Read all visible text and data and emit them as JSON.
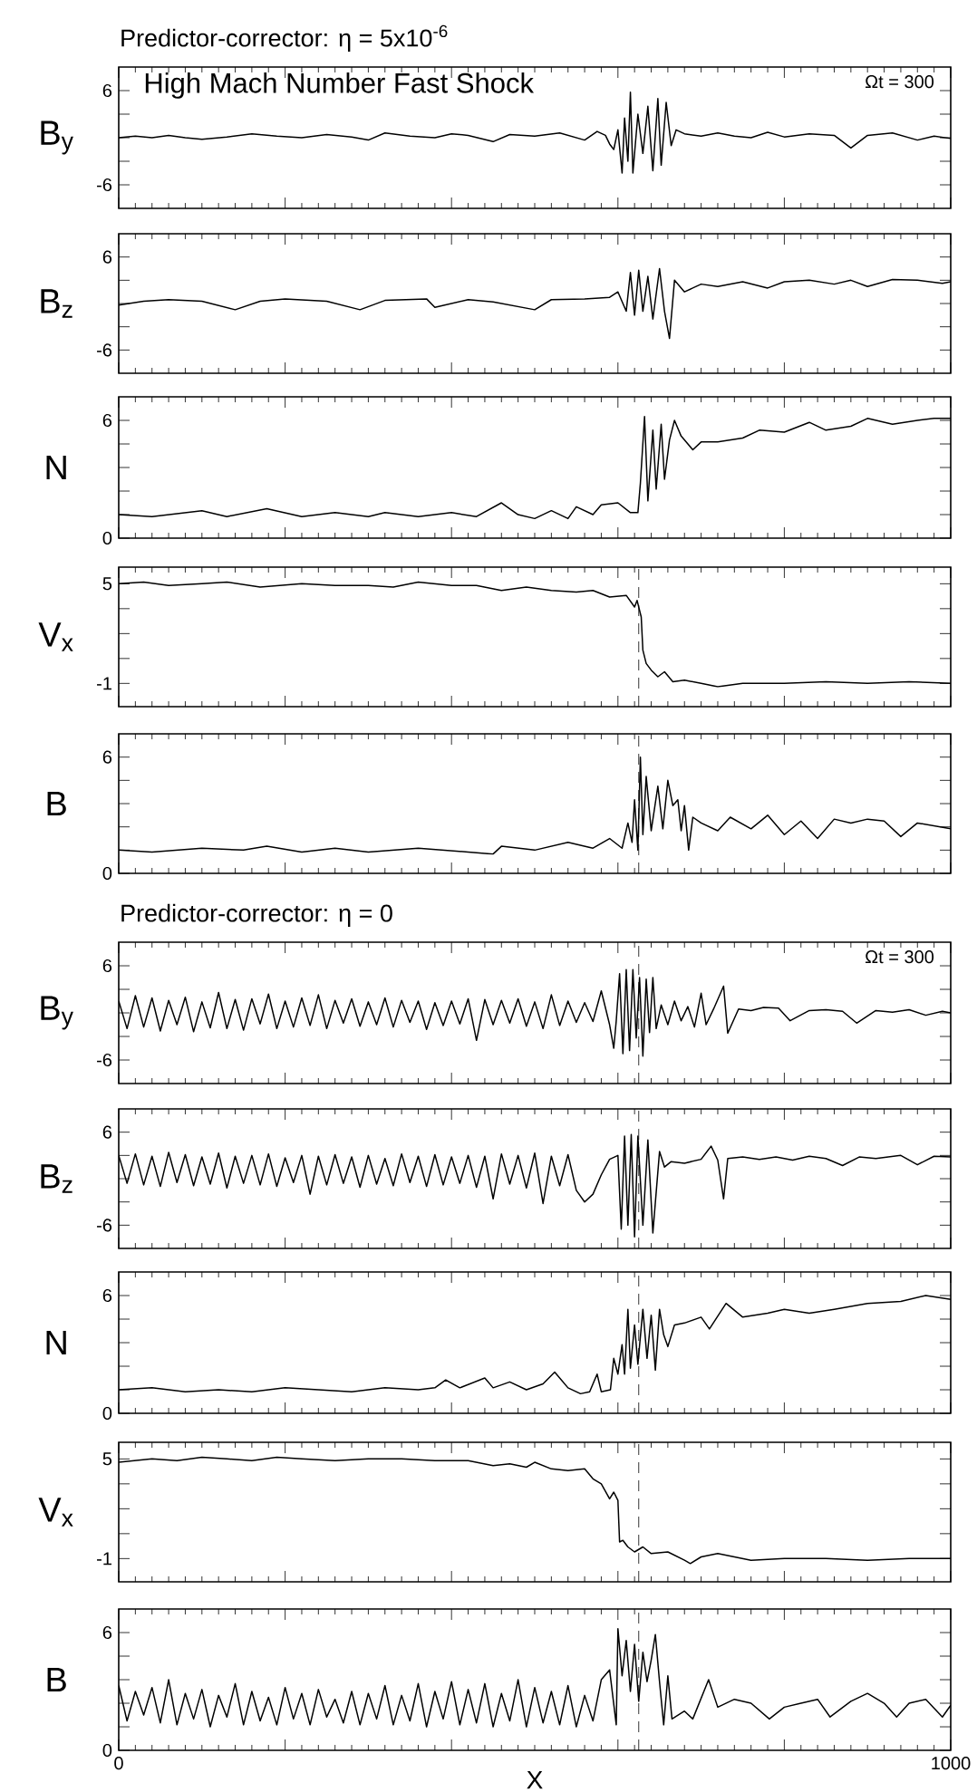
{
  "chart_data": [
    {
      "type": "line",
      "title": "Predictor-corrector: η = 5x10$^{-6}$",
      "ylabel": "B$_{y}$",
      "annotations": [
        "High Mach Number Fast Shock",
        "Ωt = 300"
      ],
      "tick_labels": "y",
      "xlim": [
        0,
        1000
      ],
      "xticks": [
        0,
        {
          "value": 200,
          "label": null
        },
        {
          "value": 400,
          "label": null
        },
        {
          "value": 600,
          "label": null
        },
        {
          "value": 800,
          "label": null
        },
        1000
      ],
      "ylim": [
        -9,
        9
      ],
      "yticks": [
        -6,
        {
          "value": -3,
          "label": null
        },
        {
          "value": 0,
          "label": null
        },
        {
          "value": 3,
          "label": null
        },
        6
      ],
      "color": "#000000",
      "x": [
        0,
        20,
        40,
        60,
        80,
        100,
        130,
        160,
        190,
        220,
        250,
        280,
        300,
        320,
        350,
        380,
        400,
        420,
        450,
        470,
        500,
        530,
        560,
        575,
        585,
        590,
        595,
        600,
        605,
        608,
        612,
        615,
        618,
        624,
        630,
        636,
        642,
        648,
        652,
        658,
        664,
        670,
        680,
        700,
        720,
        740,
        760,
        780,
        800,
        830,
        860,
        880,
        900,
        930,
        960,
        980,
        1000
      ],
      "values": [
        0,
        0.2,
        0,
        0.3,
        0,
        -0.2,
        0.1,
        0.5,
        0.2,
        0,
        0.4,
        0.1,
        -0.3,
        0.6,
        0.2,
        0,
        0.5,
        0.3,
        -0.5,
        0.4,
        0.2,
        0.6,
        -0.3,
        0.8,
        0.3,
        -0.8,
        -1.5,
        1.0,
        -4.5,
        2.5,
        -3,
        5.8,
        -4.5,
        3,
        -2,
        4,
        -4.2,
        5.0,
        -3.5,
        4.5,
        -1,
        1,
        0.5,
        0.2,
        0.6,
        0.2,
        0,
        0.7,
        0.1,
        0.5,
        0.3,
        -1.3,
        0.3,
        0.6,
        -0.3,
        0.2,
        -0.1
      ]
    },
    {
      "type": "line",
      "ylabel": "B$_{z}$",
      "tick_labels": "y",
      "xlim": [
        0,
        1000
      ],
      "xticks": [
        0,
        {
          "value": 200,
          "label": null
        },
        {
          "value": 400,
          "label": null
        },
        {
          "value": 600,
          "label": null
        },
        {
          "value": 800,
          "label": null
        },
        1000
      ],
      "ylim": [
        -9,
        9
      ],
      "yticks": [
        -6,
        {
          "value": -3,
          "label": null
        },
        {
          "value": 0,
          "label": null
        },
        {
          "value": 3,
          "label": null
        },
        6
      ],
      "color": "#000000",
      "x": [
        0,
        30,
        60,
        100,
        140,
        170,
        200,
        250,
        290,
        320,
        370,
        380,
        420,
        450,
        500,
        520,
        560,
        590,
        600,
        610,
        615,
        620,
        625,
        630,
        636,
        642,
        650,
        656,
        662,
        668,
        680,
        700,
        720,
        750,
        780,
        800,
        830,
        860,
        880,
        900,
        930,
        960,
        990,
        1000
      ],
      "values": [
        -0.2,
        0.3,
        0.5,
        0.3,
        -0.8,
        0.3,
        0.6,
        0.3,
        -0.8,
        0.4,
        0.6,
        -0.5,
        0.5,
        0.2,
        -0.8,
        0.5,
        0.6,
        0.8,
        1.5,
        -1,
        4,
        -1.5,
        4.3,
        -1,
        3.5,
        -2,
        4.5,
        -1,
        -4.5,
        3,
        1.5,
        2.5,
        2.2,
        2.8,
        2,
        2.8,
        3,
        2.5,
        3,
        2.2,
        3.1,
        3,
        2.6,
        2.8
      ]
    },
    {
      "type": "line",
      "ylabel": "N",
      "tick_labels": "y",
      "xlim": [
        0,
        1000
      ],
      "xticks": [
        0,
        {
          "value": 200,
          "label": null
        },
        {
          "value": 400,
          "label": null
        },
        {
          "value": 600,
          "label": null
        },
        {
          "value": 800,
          "label": null
        },
        1000
      ],
      "ylim": [
        0,
        7.2
      ],
      "yticks": [
        0,
        {
          "value": 1.2,
          "label": null
        },
        {
          "value": 2.4,
          "label": null
        },
        {
          "value": 3.6,
          "label": null
        },
        {
          "value": 4.8,
          "label": null
        },
        6
      ],
      "color": "#000000",
      "x": [
        0,
        40,
        100,
        130,
        178,
        220,
        260,
        300,
        320,
        360,
        400,
        430,
        460,
        480,
        500,
        520,
        540,
        550,
        570,
        580,
        600,
        615,
        624,
        627,
        632,
        636,
        642,
        646,
        652,
        656,
        662,
        668,
        676,
        690,
        700,
        720,
        750,
        770,
        800,
        830,
        850,
        880,
        900,
        930,
        960,
        980,
        1000
      ],
      "values": [
        1.2,
        1.1,
        1.4,
        1.1,
        1.5,
        1.1,
        1.3,
        1.1,
        1.3,
        1.1,
        1.3,
        1.1,
        1.8,
        1.2,
        1.0,
        1.4,
        1.0,
        1.6,
        1.2,
        1.7,
        1.8,
        1.3,
        1.3,
        2.8,
        6.2,
        1.9,
        5.5,
        2.5,
        5.8,
        3.0,
        5.0,
        6.0,
        5.2,
        4.5,
        4.9,
        4.9,
        5.1,
        5.5,
        5.4,
        5.9,
        5.5,
        5.7,
        6.1,
        5.8,
        6.0,
        6.1,
        6.1
      ]
    },
    {
      "type": "line",
      "ylabel": "V$_{x}$",
      "tick_labels": "y",
      "xlim": [
        0,
        1000
      ],
      "xticks": [
        0,
        {
          "value": 200,
          "label": null
        },
        {
          "value": 400,
          "label": null
        },
        {
          "value": 600,
          "label": null
        },
        {
          "value": 800,
          "label": null
        },
        1000
      ],
      "ylim": [
        -2.4,
        6
      ],
      "yticks": [
        -1,
        {
          "value": 0.5,
          "label": null
        },
        {
          "value": 2,
          "label": null
        },
        {
          "value": 3.5,
          "label": null
        },
        5
      ],
      "color": "#000000",
      "ref_lines": [
        {
          "axis": "x",
          "value": 625,
          "line_style": "dashed"
        }
      ],
      "x": [
        0,
        30,
        60,
        100,
        130,
        170,
        220,
        260,
        300,
        330,
        360,
        400,
        430,
        460,
        490,
        520,
        550,
        570,
        590,
        610,
        620,
        623,
        628,
        630,
        634,
        640,
        648,
        656,
        666,
        680,
        700,
        720,
        750,
        800,
        850,
        900,
        950,
        1000
      ],
      "values": [
        5.0,
        5.1,
        4.9,
        5.0,
        5.1,
        4.8,
        5.0,
        4.9,
        4.9,
        4.8,
        5.1,
        4.9,
        4.9,
        4.6,
        4.8,
        4.6,
        4.5,
        4.6,
        4.2,
        4.3,
        3.6,
        4.0,
        3.0,
        1.0,
        0.2,
        -0.2,
        -0.6,
        -0.3,
        -0.9,
        -0.8,
        -1.0,
        -1.2,
        -1.0,
        -1.0,
        -0.9,
        -1.0,
        -0.9,
        -1.0
      ]
    },
    {
      "type": "line",
      "ylabel": "B",
      "tick_labels": "y",
      "xlim": [
        0,
        1000
      ],
      "xticks": [
        0,
        {
          "value": 200,
          "label": null
        },
        {
          "value": 400,
          "label": null
        },
        {
          "value": 600,
          "label": null
        },
        {
          "value": 800,
          "label": null
        },
        1000
      ],
      "ylim": [
        0,
        7.2
      ],
      "yticks": [
        0,
        {
          "value": 1.2,
          "label": null
        },
        {
          "value": 2.4,
          "label": null
        },
        {
          "value": 3.6,
          "label": null
        },
        {
          "value": 4.8,
          "label": null
        },
        6
      ],
      "color": "#000000",
      "ref_lines": [
        {
          "axis": "x",
          "value": 625,
          "line_style": "dashed"
        }
      ],
      "x": [
        0,
        40,
        100,
        150,
        178,
        220,
        260,
        300,
        360,
        420,
        450,
        460,
        500,
        540,
        570,
        590,
        605,
        612,
        617,
        620,
        624,
        627,
        630,
        634,
        640,
        648,
        654,
        660,
        666,
        672,
        676,
        680,
        685,
        690,
        700,
        720,
        735,
        760,
        780,
        800,
        820,
        840,
        860,
        880,
        900,
        920,
        940,
        960,
        1000
      ],
      "values": [
        1.2,
        1.1,
        1.3,
        1.2,
        1.4,
        1.1,
        1.3,
        1.1,
        1.3,
        1.1,
        1.0,
        1.4,
        1.2,
        1.6,
        1.3,
        1.8,
        1.3,
        2.6,
        1.6,
        3.8,
        1.2,
        6.0,
        2.0,
        5.0,
        2.2,
        4.5,
        2.3,
        4.8,
        3.5,
        3.8,
        2.2,
        3.5,
        1.2,
        2.9,
        2.6,
        2.2,
        2.9,
        2.3,
        3.0,
        2.0,
        2.7,
        1.8,
        2.8,
        2.6,
        2.8,
        2.7,
        1.9,
        2.6,
        2.3
      ]
    },
    {
      "type": "line",
      "title": "Predictor-corrector: η = 0",
      "ylabel": "B$_{y}$",
      "annotations": [
        "Ωt = 300"
      ],
      "tick_labels": "y",
      "xlim": [
        0,
        1000
      ],
      "xticks": [
        0,
        {
          "value": 200,
          "label": null
        },
        {
          "value": 400,
          "label": null
        },
        {
          "value": 600,
          "label": null
        },
        {
          "value": 800,
          "label": null
        },
        1000
      ],
      "ylim": [
        -9,
        9
      ],
      "yticks": [
        -6,
        {
          "value": -3,
          "label": null
        },
        {
          "value": 0,
          "label": null
        },
        {
          "value": 3,
          "label": null
        },
        6
      ],
      "color": "#000000",
      "ref_lines": [
        {
          "axis": "x",
          "value": 625,
          "line_style": "dashed"
        }
      ],
      "x": [
        0,
        10,
        20,
        30,
        40,
        50,
        60,
        70,
        80,
        90,
        100,
        110,
        120,
        130,
        140,
        150,
        160,
        170,
        180,
        190,
        200,
        210,
        220,
        230,
        240,
        250,
        260,
        270,
        280,
        290,
        300,
        310,
        320,
        330,
        340,
        350,
        360,
        370,
        380,
        390,
        400,
        410,
        420,
        430,
        440,
        450,
        460,
        470,
        480,
        490,
        500,
        510,
        520,
        530,
        540,
        550,
        560,
        570,
        580,
        590,
        595,
        598,
        602,
        606,
        610,
        614,
        618,
        622,
        626,
        630,
        634,
        638,
        642,
        646,
        652,
        660,
        668,
        676,
        684,
        692,
        700,
        706,
        715,
        727,
        732,
        745,
        760,
        775,
        793,
        807,
        830,
        850,
        870,
        887,
        910,
        930,
        950,
        970,
        990,
        1000
      ],
      "values": [
        1.5,
        -2,
        2.2,
        -1.8,
        1.9,
        -2.3,
        1.6,
        -1.5,
        2.0,
        -2.4,
        1.4,
        -1.9,
        2.6,
        -2.0,
        1.7,
        -2.2,
        1.8,
        -1.4,
        2.4,
        -2.0,
        1.5,
        -1.8,
        1.9,
        -1.6,
        2.3,
        -2.0,
        1.6,
        -1.3,
        1.8,
        -1.7,
        1.4,
        -1.5,
        1.9,
        -1.8,
        1.6,
        -1.2,
        1.5,
        -2.1,
        1.3,
        -1.6,
        1.5,
        -1.4,
        1.8,
        -3.5,
        1.7,
        -1.5,
        1.6,
        -1.3,
        1.8,
        -1.7,
        1.4,
        -2.0,
        2.3,
        -1.6,
        1.5,
        -1.2,
        1.3,
        -1.1,
        2.8,
        -1.5,
        -4.5,
        -1,
        5.0,
        -5.2,
        5.5,
        -4.8,
        5.5,
        -3.2,
        4.5,
        -5.5,
        4.3,
        -2.5,
        4.5,
        -2.0,
        1.0,
        -1.5,
        1.5,
        -1.0,
        0.8,
        -1.8,
        2.5,
        -1.5,
        0.5,
        3.4,
        -2.6,
        0.5,
        0.3,
        0.7,
        0.6,
        -1.0,
        0.3,
        0.4,
        0.2,
        -1.3,
        0.3,
        0.1,
        0.4,
        -0.3,
        0.2,
        0.0
      ]
    },
    {
      "type": "line",
      "ylabel": "B$_{z}$",
      "tick_labels": "y",
      "xlim": [
        0,
        1000
      ],
      "xticks": [
        0,
        {
          "value": 200,
          "label": null
        },
        {
          "value": 400,
          "label": null
        },
        {
          "value": 600,
          "label": null
        },
        {
          "value": 800,
          "label": null
        },
        1000
      ],
      "ylim": [
        -9,
        9
      ],
      "yticks": [
        -6,
        {
          "value": -3,
          "label": null
        },
        {
          "value": 0,
          "label": null
        },
        {
          "value": 3,
          "label": null
        },
        6
      ],
      "color": "#000000",
      "ref_lines": [
        {
          "axis": "x",
          "value": 625,
          "line_style": "dashed"
        }
      ],
      "x": [
        0,
        10,
        20,
        30,
        40,
        50,
        60,
        70,
        80,
        90,
        100,
        110,
        120,
        130,
        140,
        150,
        160,
        170,
        180,
        190,
        200,
        210,
        220,
        230,
        240,
        250,
        260,
        270,
        280,
        290,
        300,
        310,
        320,
        330,
        340,
        350,
        360,
        370,
        380,
        390,
        400,
        410,
        420,
        430,
        440,
        450,
        460,
        470,
        480,
        490,
        500,
        510,
        520,
        530,
        540,
        550,
        560,
        570,
        580,
        590,
        600,
        604,
        608,
        612,
        616,
        620,
        624,
        630,
        636,
        642,
        650,
        656,
        664,
        680,
        700,
        712,
        720,
        727,
        732,
        750,
        770,
        790,
        810,
        830,
        850,
        870,
        890,
        910,
        940,
        960,
        980,
        1000
      ],
      "values": [
        3.0,
        -0.6,
        3.2,
        -0.8,
        2.9,
        -1.0,
        3.4,
        -0.5,
        3.1,
        -0.9,
        2.8,
        -0.7,
        3.3,
        -1.2,
        2.9,
        -0.6,
        3.0,
        -0.8,
        3.2,
        -1.0,
        2.7,
        -0.5,
        3.0,
        -2.0,
        2.9,
        -0.8,
        3.1,
        -0.6,
        2.8,
        -1.1,
        3.0,
        -0.7,
        2.6,
        -0.9,
        3.2,
        -0.5,
        2.9,
        -1.0,
        3.1,
        -0.8,
        2.8,
        -0.6,
        3.0,
        -1.1,
        2.9,
        -2.6,
        3.2,
        -0.7,
        3.0,
        -1.2,
        3.3,
        -3.2,
        2.9,
        -0.9,
        3.1,
        -1.5,
        -3.0,
        -2.0,
        0.5,
        2.5,
        3.0,
        -6.5,
        5.5,
        -6.0,
        5.7,
        -7.5,
        5.5,
        -6.0,
        5.0,
        -7.0,
        3.5,
        1.5,
        2.2,
        2.0,
        2.5,
        4.2,
        2.4,
        -2.6,
        2.6,
        2.8,
        2.5,
        2.8,
        2.4,
        2.9,
        2.6,
        1.7,
        2.8,
        2.6,
        3.0,
        1.8,
        2.9,
        2.8
      ]
    },
    {
      "type": "line",
      "ylabel": "N",
      "tick_labels": "y",
      "xlim": [
        0,
        1000
      ],
      "xticks": [
        0,
        {
          "value": 200,
          "label": null
        },
        {
          "value": 400,
          "label": null
        },
        {
          "value": 600,
          "label": null
        },
        {
          "value": 800,
          "label": null
        },
        1000
      ],
      "ylim": [
        0,
        7.2
      ],
      "yticks": [
        0,
        {
          "value": 1.2,
          "label": null
        },
        {
          "value": 2.4,
          "label": null
        },
        {
          "value": 3.6,
          "label": null
        },
        {
          "value": 4.8,
          "label": null
        },
        6
      ],
      "color": "#000000",
      "ref_lines": [
        {
          "axis": "x",
          "value": 625,
          "line_style": "dashed"
        }
      ],
      "x": [
        0,
        40,
        80,
        120,
        160,
        200,
        240,
        280,
        320,
        360,
        380,
        393,
        410,
        440,
        450,
        470,
        490,
        510,
        524,
        540,
        555,
        566,
        575,
        580,
        591,
        595,
        600,
        605,
        608,
        612,
        615,
        620,
        624,
        630,
        635,
        640,
        645,
        650,
        655,
        660,
        668,
        680,
        700,
        710,
        730,
        750,
        780,
        800,
        830,
        860,
        900,
        940,
        970,
        1000
      ],
      "values": [
        1.2,
        1.3,
        1.1,
        1.2,
        1.1,
        1.3,
        1.2,
        1.1,
        1.3,
        1.2,
        1.3,
        1.7,
        1.3,
        1.8,
        1.3,
        1.6,
        1.2,
        1.5,
        2.1,
        1.3,
        1.0,
        1.1,
        2.0,
        1.1,
        1.2,
        2.8,
        2.0,
        3.5,
        2.0,
        5.3,
        2.3,
        4.5,
        2.5,
        5.3,
        2.8,
        5.0,
        2.2,
        5.3,
        4.0,
        3.4,
        4.5,
        4.6,
        4.9,
        4.3,
        5.6,
        4.9,
        5.1,
        5.3,
        5.1,
        5.3,
        5.6,
        5.7,
        6.0,
        5.8
      ]
    },
    {
      "type": "line",
      "ylabel": "V$_{x}$",
      "tick_labels": "y",
      "xlim": [
        0,
        1000
      ],
      "xticks": [
        0,
        {
          "value": 200,
          "label": null
        },
        {
          "value": 400,
          "label": null
        },
        {
          "value": 600,
          "label": null
        },
        {
          "value": 800,
          "label": null
        },
        1000
      ],
      "ylim": [
        -2.4,
        6
      ],
      "yticks": [
        -1,
        {
          "value": 0.5,
          "label": null
        },
        {
          "value": 2,
          "label": null
        },
        {
          "value": 3.5,
          "label": null
        },
        5
      ],
      "color": "#000000",
      "ref_lines": [
        {
          "axis": "x",
          "value": 625,
          "line_style": "dashed"
        }
      ],
      "x": [
        0,
        20,
        40,
        70,
        100,
        130,
        160,
        190,
        220,
        260,
        300,
        340,
        380,
        420,
        450,
        470,
        490,
        500,
        520,
        540,
        560,
        570,
        580,
        590,
        595,
        600,
        602,
        606,
        612,
        620,
        630,
        640,
        660,
        680,
        687,
        700,
        720,
        740,
        760,
        800,
        850,
        900,
        950,
        1000
      ],
      "values": [
        4.8,
        4.9,
        5.0,
        4.9,
        5.1,
        5.0,
        4.9,
        5.1,
        5.0,
        4.9,
        5.0,
        5.0,
        4.9,
        4.9,
        4.6,
        4.7,
        4.5,
        4.8,
        4.4,
        4.3,
        4.4,
        3.8,
        3.5,
        2.6,
        3.0,
        2.5,
        0.0,
        0.1,
        -0.3,
        -0.6,
        -0.3,
        -0.7,
        -0.6,
        -1.1,
        -1.3,
        -0.9,
        -0.7,
        -0.9,
        -1.1,
        -1.0,
        -1.0,
        -1.1,
        -1.0,
        -1.0
      ]
    },
    {
      "type": "line",
      "ylabel": "B",
      "xlabel": "X",
      "xlim": [
        0,
        1000
      ],
      "xticks": [
        0,
        {
          "value": 200,
          "label": null
        },
        {
          "value": 400,
          "label": null
        },
        {
          "value": 600,
          "label": null
        },
        {
          "value": 800,
          "label": null
        },
        1000
      ],
      "ylim": [
        0,
        7.2
      ],
      "yticks": [
        0,
        {
          "value": 1.2,
          "label": null
        },
        {
          "value": 2.4,
          "label": null
        },
        {
          "value": 3.6,
          "label": null
        },
        {
          "value": 4.8,
          "label": null
        },
        6
      ],
      "color": "#000000",
      "ref_lines": [
        {
          "axis": "x",
          "value": 625,
          "line_style": "dashed"
        }
      ],
      "x": [
        0,
        10,
        20,
        30,
        40,
        50,
        60,
        70,
        80,
        90,
        100,
        110,
        120,
        130,
        140,
        150,
        160,
        170,
        180,
        190,
        200,
        210,
        220,
        230,
        240,
        250,
        260,
        270,
        280,
        290,
        300,
        310,
        320,
        330,
        340,
        350,
        360,
        370,
        380,
        390,
        400,
        410,
        420,
        430,
        440,
        450,
        460,
        470,
        480,
        490,
        500,
        510,
        520,
        530,
        540,
        550,
        560,
        570,
        580,
        590,
        598,
        600,
        605,
        610,
        615,
        620,
        625,
        630,
        635,
        640,
        645,
        650,
        655,
        660,
        665,
        680,
        690,
        709,
        720,
        740,
        760,
        782,
        800,
        820,
        840,
        855,
        880,
        900,
        920,
        935,
        950,
        970,
        990,
        1000
      ],
      "values": [
        3.3,
        1.5,
        3.0,
        1.8,
        3.2,
        1.4,
        3.6,
        1.3,
        2.9,
        1.6,
        3.1,
        1.2,
        2.8,
        1.7,
        3.4,
        1.3,
        3.0,
        1.5,
        2.7,
        1.3,
        3.2,
        1.6,
        2.9,
        1.3,
        3.1,
        1.7,
        2.6,
        1.4,
        3.0,
        1.3,
        2.9,
        1.6,
        3.3,
        1.3,
        2.8,
        1.5,
        3.4,
        1.2,
        3.0,
        1.6,
        3.5,
        1.3,
        3.1,
        1.4,
        3.4,
        1.2,
        2.9,
        1.5,
        3.6,
        1.2,
        3.2,
        1.4,
        3.0,
        1.3,
        3.3,
        1.2,
        2.8,
        1.5,
        3.6,
        4.1,
        1.3,
        6.2,
        3.8,
        5.6,
        3.0,
        5.4,
        2.5,
        5.0,
        3.5,
        4.6,
        5.9,
        3.5,
        1.3,
        3.8,
        1.6,
        2.0,
        1.6,
        3.6,
        2.2,
        2.6,
        2.4,
        1.6,
        2.2,
        2.4,
        2.6,
        1.7,
        2.5,
        2.9,
        2.4,
        1.7,
        2.4,
        2.6,
        1.7,
        2.3
      ]
    }
  ]
}
